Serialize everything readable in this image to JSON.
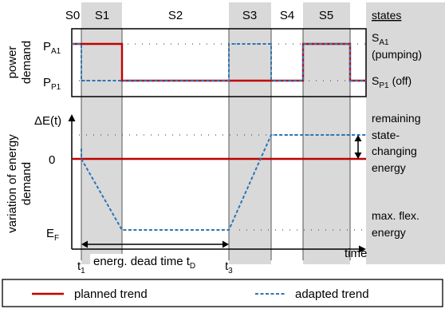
{
  "states_header": "states",
  "states": [
    {
      "label": "S0",
      "shaded": false
    },
    {
      "label": "S1",
      "shaded": true
    },
    {
      "label": "S2",
      "shaded": false
    },
    {
      "label": "S3",
      "shaded": true
    },
    {
      "label": "S4",
      "shaded": false
    },
    {
      "label": "S5",
      "shaded": true
    }
  ],
  "top_panel": {
    "ylabel_line1": "power",
    "ylabel_line2": "demand",
    "tick_high_main": "P",
    "tick_high_sub": "A1",
    "tick_low_main": "P",
    "tick_low_sub": "P1",
    "right_high_main": "S",
    "right_high_sub": "A1",
    "right_high_note": "(pumping)",
    "right_low_main": "S",
    "right_low_sub": "P1",
    "right_low_note": "(off)"
  },
  "bottom_panel": {
    "ylabel_line1": "variation of energy",
    "ylabel_line2": "demand",
    "tick_top": "ΔE(t)",
    "tick_zero": "0",
    "tick_bottom_main": "E",
    "tick_bottom_sub": "F",
    "right_note_lines": [
      "remaining",
      "state-",
      "changing",
      "energy"
    ],
    "right_bottom_lines": [
      "max. flex.",
      "energy"
    ],
    "xlabel": "time",
    "t1_main": "t",
    "t1_sub": "1",
    "t3_main": "t",
    "t3_sub": "3",
    "dead_time_text": "energ. dead time t",
    "dead_time_sub": "D"
  },
  "legend": {
    "planned": "planned trend",
    "adapted": "adapted trend"
  },
  "colors": {
    "planned": "#c00000",
    "adapted": "#2e75b6",
    "shade": "#d9d9d9"
  }
}
